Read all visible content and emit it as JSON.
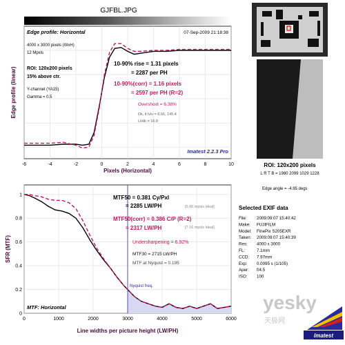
{
  "page": {
    "filename": "GJFBL.JPG",
    "watermark_text": "yesky",
    "watermark_cn": "天极网",
    "brand_logo": "Imatest",
    "colors": {
      "measured": "#000000",
      "corrected": "#c0185a",
      "axis_label": "#4a0a3a",
      "nyquist_fill": "#d8d8f4",
      "imatest_blue": "#2a2a9a"
    }
  },
  "edge_panel": {
    "title": "Edge profile: Horizontal",
    "timestamp": "07-Sep-2009 21:18:38",
    "info_lines": [
      "4000 x 3000 pixels (WxH)",
      "12 Mpxls"
    ],
    "roi_lines": [
      "ROI: 120x200 pixels",
      "15% above ctr."
    ],
    "channel_lines": [
      "Y-channel  (YA15)",
      "Gamma = 0.5"
    ],
    "rise_line1": "10-90% rise = 1.31 pixels",
    "rise_line2": "= 2287 per PH",
    "corr_line1": "10-90%(corr) = 1.16 pixels",
    "corr_line2": "= 2597 per PH  (R=2)",
    "overshoot": "Overshoot = 6.38%",
    "dark_light": "Dk, lt lvls = 8.66, 145.4",
    "lt_dk": "Lt/dk = 16.8",
    "version": "Imatest 2.2.3 Pro",
    "ylabel": "Edge profile (linear)",
    "xlabel": "Pixels (Horizontal)"
  },
  "roi_panel": {
    "title": "ROI: 120x200 pixels",
    "lrtb": "L R T B = 1980 2099  1029 1228",
    "edge_angle": "Edge angle = -4.95 degs"
  },
  "mtf_panel": {
    "title": "MTF: Horizontal",
    "mtf50": "MTF50 = 0.381 Cy/Pxl",
    "mtf50_lw": "= 2285 LW/PH",
    "mtf50_ideal": "[6.96 mpxls ideal]",
    "mtf50_corr": "MTF50(corr) = 0.386 C/P  (R=2)",
    "mtf50_corr_lw": "= 2317 LW/PH",
    "mtf50_corr_ideal": "[7.16 mpxls ideal]",
    "undersharpening": "Undersharpening = 6.92%",
    "mtf30": "MTF30 = 2715 LW/PH",
    "mtf_nyquist": "MTF at Nyquist = 0.195",
    "nyquist_label": "Nyquist freq.",
    "ylabel": "SFR (MTF)",
    "xlabel": "Line widths per picture height (LW/PH)"
  },
  "exif": {
    "title": "Selected EXIF data",
    "rows": [
      {
        "k": "File:",
        "v": "2009:09:07 15:40:42"
      },
      {
        "k": "Make:",
        "v": "FUJIFILM"
      },
      {
        "k": "Model:",
        "v": "FinePix S205EXR"
      },
      {
        "k": "Taken:",
        "v": "2009:09:07 15:40:39"
      },
      {
        "k": "Res:",
        "v": "4000 x 3000"
      },
      {
        "k": "FL:",
        "v": "7.1mm"
      },
      {
        "k": "CCD:",
        "v": "7.97mm"
      },
      {
        "k": "Exp:",
        "v": "0.0095 s (1/105)"
      },
      {
        "k": "Aper:",
        "v": "f/4.5"
      },
      {
        "k": "ISO:",
        "v": "100"
      }
    ]
  },
  "chart_data": [
    {
      "type": "line",
      "title": "Edge profile: Horizontal",
      "xlabel": "Pixels (Horizontal)",
      "ylabel": "Edge profile (linear)",
      "xlim": [
        -6,
        10
      ],
      "xticks": [
        -6,
        -4,
        -2,
        0,
        2,
        4,
        6,
        8,
        10
      ],
      "grid": true,
      "series": [
        {
          "x": [
            -6,
            -5,
            -4,
            -3,
            -2,
            -1.5,
            -1,
            -0.6,
            -0.2,
            0.2,
            0.6,
            1,
            1.5,
            2,
            2.5,
            3,
            4,
            5,
            6,
            7,
            8,
            9,
            10
          ],
          "y": [
            0.02,
            0.02,
            0.02,
            0.03,
            0.03,
            0.02,
            0.03,
            0.15,
            0.42,
            0.72,
            0.93,
            1.02,
            1.03,
            0.99,
            0.96,
            0.97,
            0.99,
            0.99,
            1.0,
            1.0,
            1.0,
            1.0,
            1.0
          ]
        },
        {
          "x": [
            -6,
            -5,
            -4,
            -3,
            -2,
            -1.5,
            -1,
            -0.6,
            -0.2,
            0.2,
            0.6,
            1,
            1.5,
            2,
            2.5,
            3,
            4,
            5,
            6,
            7,
            8,
            9,
            10
          ],
          "y": [
            0.04,
            0.04,
            0.04,
            0.05,
            0.02,
            -0.01,
            0.0,
            0.12,
            0.4,
            0.75,
            0.98,
            1.07,
            1.07,
            1.02,
            0.99,
            0.99,
            1.0,
            1.0,
            1.01,
            1.01,
            1.01,
            1.01,
            1.01
          ]
        }
      ]
    },
    {
      "type": "line",
      "title": "MTF: Horizontal",
      "xlabel": "Line widths per picture height (LW/PH)",
      "ylabel": "SFR (MTF)",
      "xlim": [
        0,
        6000
      ],
      "ylim": [
        0,
        1.08
      ],
      "xticks": [
        0,
        1000,
        2000,
        3000,
        4000,
        5000,
        6000
      ],
      "yticks": [
        0,
        0.2,
        0.4,
        0.6,
        0.8,
        1
      ],
      "nyquist_x": 3000,
      "grid": true,
      "series": [
        {
          "x": [
            0,
            150,
            300,
            500,
            700,
            900,
            1100,
            1300,
            1500,
            1700,
            1900,
            2100,
            2300,
            2500,
            2700,
            2900,
            3000,
            3200,
            3400,
            3600,
            3800,
            4000,
            4200,
            4400,
            4600,
            4800,
            5000,
            5200,
            5400,
            5600,
            5800,
            6000
          ],
          "y": [
            1.0,
            0.99,
            0.97,
            0.94,
            0.9,
            0.87,
            0.86,
            0.84,
            0.8,
            0.72,
            0.62,
            0.53,
            0.45,
            0.38,
            0.3,
            0.23,
            0.2,
            0.14,
            0.1,
            0.08,
            0.06,
            0.05,
            0.08,
            0.05,
            0.04,
            0.06,
            0.04,
            0.06,
            0.08,
            0.04,
            0.05,
            0.06
          ]
        },
        {
          "x": [
            0,
            150,
            300,
            500,
            700,
            900,
            1100,
            1300,
            1500,
            1700,
            1900,
            2100,
            2300,
            2500,
            2700,
            2900,
            3000,
            3200,
            3400,
            3600,
            3800,
            4000,
            4200,
            4400,
            4600,
            4800,
            5000,
            5200,
            5400,
            5600,
            5800,
            6000
          ],
          "y": [
            1.0,
            1.0,
            0.99,
            0.98,
            0.96,
            0.95,
            0.95,
            0.93,
            0.88,
            0.78,
            0.66,
            0.55,
            0.46,
            0.38,
            0.3,
            0.23,
            0.2,
            0.14,
            0.1,
            0.08,
            0.06,
            0.05,
            0.08,
            0.05,
            0.04,
            0.06,
            0.04,
            0.06,
            0.08,
            0.04,
            0.05,
            0.06
          ]
        }
      ]
    }
  ]
}
